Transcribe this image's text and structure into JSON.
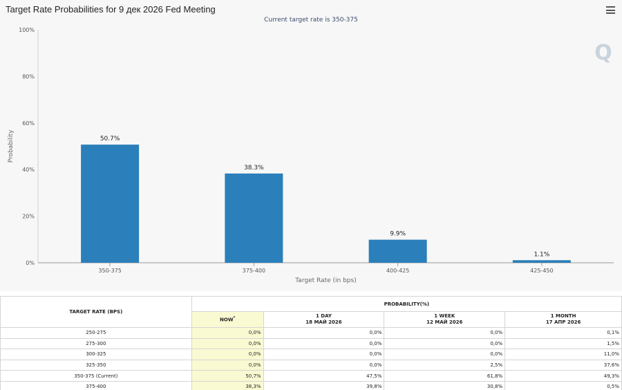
{
  "chart": {
    "title": "Target Rate Probabilities for 9 дек 2026 Fed Meeting",
    "subtitle": "Current target rate is 350-375",
    "watermark": "Q",
    "colors": {
      "bar": "#2b7fba",
      "panel": "#f7f7f7",
      "now_highlight": "#fafad2"
    }
  },
  "chart_data": {
    "type": "bar",
    "title": "Target Rate Probabilities for 9 дек 2026 Fed Meeting",
    "subtitle": "Current target rate is 350-375",
    "xlabel": "Target Rate (in bps)",
    "ylabel": "Probability",
    "categories": [
      "350-375",
      "375-400",
      "400-425",
      "425-450"
    ],
    "values": [
      50.7,
      38.3,
      9.9,
      1.1
    ],
    "data_labels": [
      "50.7%",
      "38.3%",
      "9.9%",
      "1.1%"
    ],
    "ylim": [
      0,
      100
    ],
    "yticks": [
      "0%",
      "20%",
      "40%",
      "60%",
      "80%",
      "100%"
    ],
    "ytick_values": [
      0,
      20,
      40,
      60,
      80,
      100
    ],
    "grid": false,
    "legend": "none"
  },
  "table": {
    "header_target": "TARGET RATE (BPS)",
    "header_probability": "PROBABILITY(%)",
    "columns": [
      {
        "line1": "NOW",
        "line2": "",
        "asterisk": "*"
      },
      {
        "line1": "1 DAY",
        "line2": "18 МАЙ 2026"
      },
      {
        "line1": "1 WEEK",
        "line2": "12 МАЙ 2026"
      },
      {
        "line1": "1 MONTH",
        "line2": "17 АПР 2026"
      }
    ],
    "rows": [
      {
        "rate": "250-275",
        "now": "0,0%",
        "day": "0,0%",
        "week": "0,0%",
        "month": "0,1%"
      },
      {
        "rate": "275-300",
        "now": "0,0%",
        "day": "0,0%",
        "week": "0,0%",
        "month": "1,5%"
      },
      {
        "rate": "300-325",
        "now": "0,0%",
        "day": "0,0%",
        "week": "0,0%",
        "month": "11,0%"
      },
      {
        "rate": "325-350",
        "now": "0,0%",
        "day": "0,0%",
        "week": "2,5%",
        "month": "37,6%"
      },
      {
        "rate": "350-375 (Current)",
        "now": "50,7%",
        "day": "47,5%",
        "week": "61,8%",
        "month": "49,3%"
      },
      {
        "rate": "375-400",
        "now": "38,3%",
        "day": "39,8%",
        "week": "30,8%",
        "month": "0,5%"
      }
    ]
  }
}
